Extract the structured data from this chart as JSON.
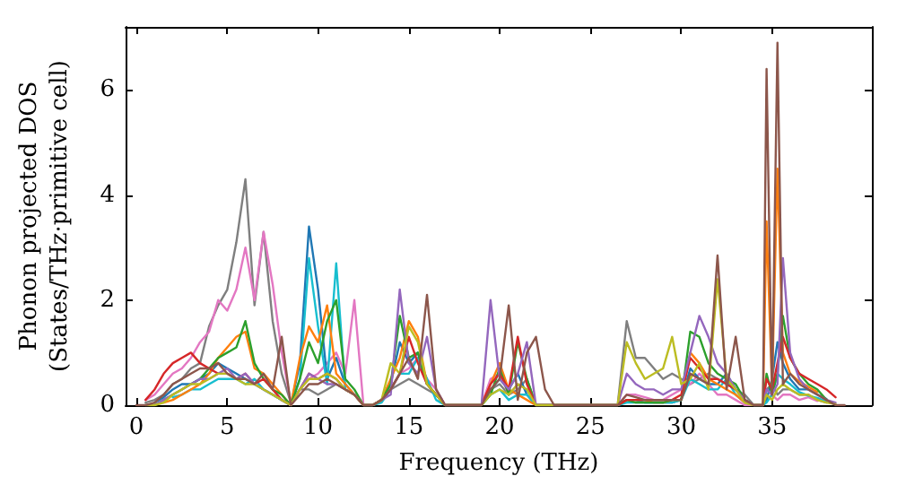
{
  "chart_data": {
    "type": "line",
    "xlabel": "Frequency (THz)",
    "ylabel": "Phonon projected DOS\n(States/THz·primitive cell)",
    "x": [
      0,
      0.5,
      1,
      1.5,
      2,
      2.5,
      3,
      3.5,
      4,
      4.5,
      5,
      5.5,
      6,
      6.5,
      7,
      7.5,
      8,
      8.5,
      9,
      9.5,
      10,
      10.5,
      11,
      11.5,
      12,
      12.5,
      13,
      13.5,
      14,
      14.5,
      15,
      15.5,
      16,
      16.5,
      17,
      17.5,
      18,
      18.5,
      19,
      19.5,
      20,
      20.5,
      21,
      21.5,
      22,
      22.5,
      23,
      23.5,
      24,
      24.5,
      25,
      25.5,
      26,
      26.5,
      27,
      27.5,
      28,
      28.5,
      29,
      29.5,
      30,
      30.5,
      31,
      31.5,
      32,
      32.5,
      33,
      33.5,
      34,
      34.5,
      34.7,
      35,
      35.3,
      35.6,
      36,
      36.5,
      37,
      37.5,
      38,
      38.5,
      39
    ],
    "series": [
      {
        "color": "#7f7f7f",
        "values": [
          null,
          0.05,
          0.1,
          0.2,
          0.4,
          0.5,
          0.7,
          0.8,
          1.5,
          1.9,
          2.2,
          3.1,
          4.3,
          1.9,
          3.3,
          1.6,
          0.6,
          0.05,
          0.3,
          0.3,
          0.2,
          0.3,
          0.4,
          0.3,
          0.2,
          0,
          0,
          0.1,
          0.3,
          0.4,
          0.5,
          0.4,
          0.3,
          0.2,
          0,
          0,
          0,
          0,
          0,
          0.3,
          0.4,
          0.2,
          0.3,
          0.5,
          0,
          0,
          0,
          0,
          0,
          0,
          0,
          0,
          0,
          0,
          1.6,
          0.9,
          0.9,
          0.7,
          0.5,
          0.6,
          0.5,
          0.4,
          0.5,
          0.6,
          0.5,
          0.4,
          0.3,
          0.2,
          0,
          0,
          0.3,
          0.4,
          0.2,
          0.3,
          0.3,
          0.2,
          0.2,
          0.1,
          0.05,
          null,
          null
        ]
      },
      {
        "color": "#e377c2",
        "values": [
          null,
          0.1,
          0.2,
          0.4,
          0.6,
          0.7,
          0.9,
          1.2,
          1.4,
          2.0,
          1.8,
          2.2,
          3.0,
          2.0,
          3.3,
          2.3,
          1.0,
          0.05,
          0.3,
          0.5,
          0.6,
          0.8,
          1.0,
          0.6,
          2.0,
          0,
          0,
          0.1,
          0.3,
          0.6,
          0.7,
          0.9,
          0.5,
          0.3,
          0,
          0,
          0,
          0,
          0,
          0.5,
          0.6,
          0.2,
          0.4,
          0.3,
          0,
          0,
          0,
          0,
          0,
          0,
          0,
          0,
          0,
          0,
          0.2,
          0.2,
          0.15,
          0.1,
          0.1,
          0.2,
          0.3,
          0.4,
          0.6,
          0.4,
          0.2,
          0.2,
          0.1,
          0,
          0,
          0,
          0.1,
          0.2,
          0.1,
          0.2,
          0.2,
          0.1,
          0.15,
          0.08,
          null,
          null,
          null
        ]
      },
      {
        "color": "#1f77b4",
        "values": [
          null,
          null,
          0.05,
          0.15,
          0.3,
          0.4,
          0.4,
          0.5,
          0.6,
          0.8,
          0.7,
          0.6,
          0.5,
          0.4,
          0.3,
          0.2,
          0.1,
          0,
          0.8,
          3.4,
          2.2,
          0.5,
          0.9,
          0.4,
          0.2,
          0,
          0,
          0.1,
          0.4,
          1.2,
          0.8,
          1.0,
          0.4,
          0.2,
          0,
          0,
          0,
          0,
          0,
          0.3,
          0.5,
          0.3,
          0.6,
          0.2,
          0,
          0,
          0,
          0,
          0,
          0,
          0,
          0,
          0,
          0,
          0.1,
          0.1,
          0.05,
          0.05,
          0.05,
          0.05,
          0.1,
          0.7,
          0.5,
          0.4,
          0.4,
          0.6,
          0.3,
          0.1,
          0,
          0,
          0.1,
          0.5,
          1.2,
          0.8,
          0.5,
          0.3,
          0.3,
          0.2,
          0.12,
          null,
          null
        ]
      },
      {
        "color": "#17becf",
        "values": [
          null,
          null,
          null,
          null,
          0.15,
          0.2,
          0.3,
          0.3,
          0.4,
          0.5,
          0.5,
          0.5,
          0.4,
          0.5,
          0.3,
          0.2,
          0.1,
          0,
          0.5,
          2.8,
          1.5,
          0.4,
          2.7,
          0.3,
          0.2,
          0,
          0,
          0.05,
          0.3,
          0.6,
          0.6,
          0.9,
          0.5,
          0.1,
          0,
          0,
          0,
          0,
          0,
          0.2,
          0.3,
          0.1,
          0.2,
          0.2,
          0,
          0,
          0,
          0,
          0,
          0,
          0,
          0,
          0,
          0,
          0.05,
          0.05,
          0.05,
          0.05,
          0.05,
          0.05,
          0.1,
          0.5,
          0.4,
          0.3,
          0.3,
          0.5,
          0.2,
          0.05,
          0,
          0,
          0.05,
          0.2,
          0.6,
          0.5,
          0.4,
          0.25,
          0.18,
          0.14,
          0.07,
          null,
          null
        ]
      },
      {
        "color": "#ff7f0e",
        "values": [
          null,
          null,
          null,
          0.05,
          0.1,
          0.2,
          0.3,
          0.4,
          0.6,
          0.9,
          1.1,
          1.3,
          1.4,
          0.7,
          0.6,
          0.4,
          0.2,
          0,
          0.9,
          1.5,
          1.2,
          1.9,
          0.6,
          0.4,
          0.2,
          0,
          0,
          0.1,
          0.5,
          0.9,
          1.6,
          1.3,
          0.4,
          0.2,
          0,
          0,
          0,
          0,
          0,
          0.4,
          0.8,
          0.3,
          0.2,
          0.1,
          0,
          0,
          0,
          0,
          0,
          0,
          0,
          0,
          0,
          0,
          0.1,
          0.1,
          0.1,
          0.05,
          0.05,
          0.1,
          0.1,
          1.0,
          0.8,
          0.5,
          0.4,
          0.3,
          0.2,
          0.05,
          0,
          0,
          3.5,
          0.3,
          4.5,
          1.0,
          0.6,
          0.45,
          0.35,
          0.25,
          null,
          null,
          null
        ]
      },
      {
        "color": "#2ca02c",
        "values": [
          null,
          0,
          0,
          0.1,
          0.2,
          0.3,
          0.4,
          0.5,
          0.7,
          0.9,
          1.0,
          1.1,
          1.6,
          0.8,
          0.5,
          0.3,
          0.2,
          0,
          0.5,
          1.2,
          0.8,
          1.6,
          2.0,
          0.5,
          0.3,
          0,
          0,
          0.1,
          0.4,
          1.7,
          0.9,
          1.0,
          0.4,
          0.2,
          0,
          0,
          0,
          0,
          0,
          0.2,
          0.7,
          0.2,
          1.2,
          0.5,
          0,
          0,
          0,
          0,
          0,
          0,
          0,
          0,
          0,
          0,
          0.1,
          0.05,
          0.05,
          0.05,
          0.05,
          0.1,
          0.1,
          1.4,
          1.3,
          0.8,
          0.6,
          0.5,
          0.4,
          0.1,
          0,
          0,
          0.6,
          0.2,
          0.6,
          1.7,
          0.9,
          0.6,
          0.4,
          0.3,
          0.1,
          null,
          null
        ]
      },
      {
        "color": "#d62728",
        "values": [
          null,
          0.1,
          0.3,
          0.6,
          0.8,
          0.9,
          1.0,
          0.8,
          0.7,
          0.6,
          0.6,
          0.5,
          0.6,
          0.4,
          0.5,
          0.3,
          0.1,
          0,
          0.3,
          0.6,
          0.5,
          0.6,
          0.5,
          0.3,
          0.2,
          0,
          0,
          0.1,
          0.3,
          0.6,
          1.3,
          0.8,
          0.4,
          0.2,
          0,
          0,
          0,
          0,
          0,
          0.4,
          0.6,
          0.3,
          1.3,
          0.4,
          0,
          0,
          0,
          0,
          0,
          0,
          0,
          0,
          0,
          0,
          0.1,
          0.1,
          0.1,
          0.1,
          0.1,
          0.1,
          0.2,
          0.9,
          0.7,
          0.5,
          0.5,
          0.4,
          0.3,
          0.1,
          0,
          0,
          0.5,
          0.3,
          0.8,
          1.3,
          0.9,
          0.6,
          0.5,
          0.4,
          0.3,
          0.15,
          null
        ]
      },
      {
        "color": "#9467bd",
        "values": [
          null,
          0,
          0,
          0.1,
          0.2,
          0.3,
          0.4,
          0.5,
          0.5,
          0.6,
          0.7,
          0.5,
          0.6,
          0.4,
          0.3,
          0.2,
          0.1,
          0,
          0.3,
          0.6,
          0.5,
          0.4,
          0.4,
          0.3,
          0.2,
          0,
          0,
          0.1,
          0.2,
          2.2,
          0.8,
          0.6,
          1.3,
          0.3,
          0,
          0,
          0,
          0,
          0,
          2.0,
          0.5,
          0.3,
          0.6,
          1.2,
          0,
          0,
          0,
          0,
          0,
          0,
          0,
          0,
          0,
          0,
          0.6,
          0.4,
          0.3,
          0.3,
          0.2,
          0.3,
          0.3,
          1.0,
          1.7,
          1.3,
          0.8,
          0.6,
          0.3,
          0.1,
          0,
          0,
          0.3,
          0.2,
          0.4,
          2.8,
          1.0,
          0.5,
          0.3,
          0.2,
          0.1,
          0.05,
          null
        ]
      },
      {
        "color": "#bcbd22",
        "values": [
          null,
          0,
          0,
          0.05,
          0.2,
          0.3,
          0.4,
          0.4,
          0.5,
          0.6,
          0.6,
          0.5,
          0.4,
          0.4,
          0.3,
          0.2,
          0.1,
          0,
          0.3,
          0.5,
          0.5,
          0.6,
          0.5,
          0.3,
          0.2,
          0,
          0,
          0.1,
          0.8,
          0.6,
          1.5,
          1.2,
          0.4,
          0.2,
          0,
          0,
          0,
          0,
          0,
          0.2,
          0.3,
          0.2,
          0.4,
          0.3,
          0,
          0,
          0,
          0,
          0,
          0,
          0,
          0,
          0,
          0,
          1.2,
          0.8,
          0.5,
          0.6,
          0.7,
          1.3,
          0.4,
          0.5,
          0.8,
          0.3,
          2.4,
          0.5,
          0.3,
          0.05,
          0,
          0,
          0.2,
          0.1,
          0.3,
          0.4,
          0.3,
          0.2,
          0.2,
          0.1,
          0.05,
          0.02,
          null
        ]
      },
      {
        "color": "#8c564b",
        "values": [
          0,
          0,
          0.05,
          0.2,
          0.4,
          0.5,
          0.6,
          0.7,
          0.7,
          0.8,
          0.6,
          0.5,
          0.5,
          0.4,
          0.6,
          0.3,
          1.3,
          0,
          0.2,
          0.4,
          0.4,
          0.5,
          0.4,
          0.3,
          0.2,
          0,
          0,
          0.1,
          0.3,
          0.6,
          0.9,
          0.5,
          2.1,
          0.3,
          0,
          0,
          0,
          0,
          0,
          0.3,
          0.5,
          1.9,
          0.1,
          1.0,
          1.3,
          0.3,
          0,
          0,
          0,
          0,
          0,
          0,
          0,
          0,
          0.2,
          0.15,
          0.1,
          0.1,
          0.1,
          0.1,
          0.1,
          0.6,
          0.5,
          0.4,
          2.85,
          0.3,
          1.3,
          0.1,
          0,
          0,
          6.4,
          0.2,
          6.9,
          0.4,
          0.6,
          0.4,
          0.3,
          0.2,
          0.1,
          0,
          0
        ]
      }
    ],
    "xlim": [
      -0.6,
      40.5
    ],
    "xticks": [
      0,
      5,
      10,
      15,
      20,
      25,
      30,
      35
    ],
    "ylim": [
      0,
      7.2
    ],
    "yticks": [
      0,
      2,
      4,
      6
    ],
    "grid": false,
    "marker": "none",
    "line_style": "solid"
  }
}
